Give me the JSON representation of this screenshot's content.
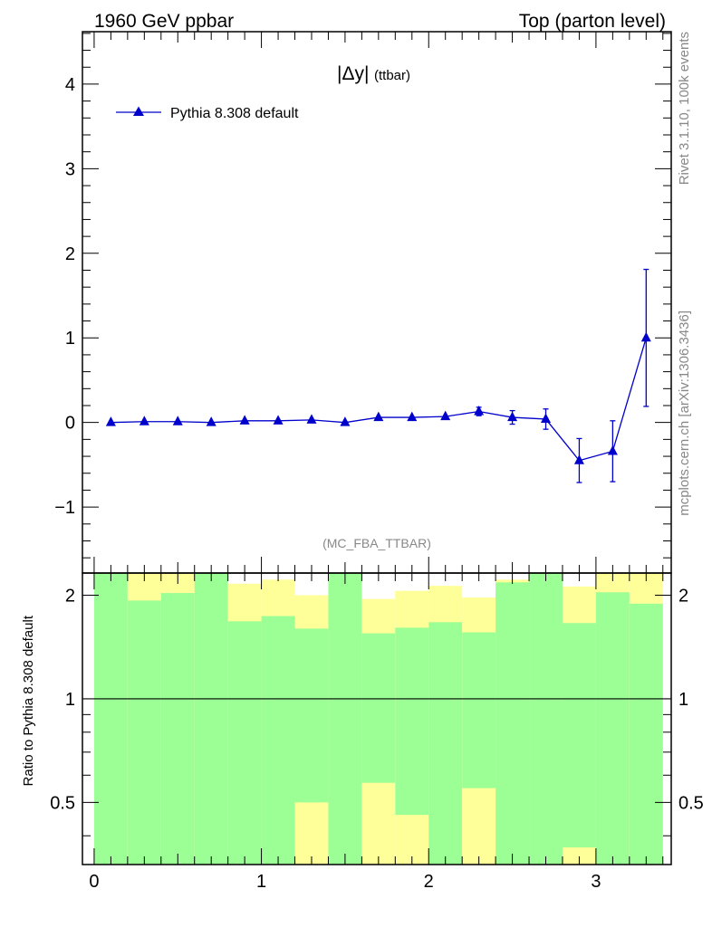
{
  "header": {
    "left": "1960 GeV ppbar",
    "right": "Top (parton level)"
  },
  "side": {
    "rivet": "Rivet 3.1.10,  100k events",
    "mcplots": "mcplots.cern.ch [arXiv:1306.3436]"
  },
  "colors": {
    "series": "#0000cc",
    "band_inner": "#9cff96",
    "band_outer": "#ffff99",
    "axis": "#000000",
    "grey_text": "#888888"
  },
  "chart_data": [
    {
      "type": "line",
      "panel": "main",
      "title": "|Δy|",
      "title_sub": "(ttbar)",
      "analysis_label": "(MC_FBA_TTBAR)",
      "xlim": [
        -0.07,
        3.45
      ],
      "ylim": [
        -1.78,
        4.62
      ],
      "yticks": [
        -1,
        0,
        1,
        2,
        3,
        4
      ],
      "yticklabels": [
        "−1",
        "0",
        "1",
        "2",
        "3",
        "4"
      ],
      "legend": {
        "placement": "top-left"
      },
      "series": [
        {
          "name": "Pythia 8.308 default",
          "marker": "triangle-up",
          "x": [
            0.1,
            0.3,
            0.5,
            0.7,
            0.9,
            1.1,
            1.3,
            1.5,
            1.7,
            1.9,
            2.1,
            2.3,
            2.5,
            2.7,
            2.9,
            3.1,
            3.3
          ],
          "y": [
            0.0,
            0.01,
            0.01,
            0.0,
            0.02,
            0.02,
            0.03,
            0.0,
            0.06,
            0.06,
            0.07,
            0.13,
            0.06,
            0.04,
            -0.45,
            -0.34,
            1.0
          ],
          "yerr": [
            0.02,
            0.02,
            0.02,
            0.02,
            0.02,
            0.02,
            0.02,
            0.02,
            0.02,
            0.03,
            0.03,
            0.05,
            0.08,
            0.12,
            0.26,
            0.36,
            0.81
          ]
        }
      ]
    },
    {
      "type": "area",
      "panel": "ratio",
      "ylabel": "Ratio to Pythia 8.308 default",
      "xlim": [
        -0.07,
        3.45
      ],
      "ylim": [
        0.33,
        2.32
      ],
      "xticks": [
        0,
        1,
        2,
        3
      ],
      "xticklabels": [
        "0",
        "1",
        "2",
        "3"
      ],
      "yticks": [
        0.5,
        1,
        2
      ],
      "yticklabels": [
        "0.5",
        "1",
        "2"
      ],
      "reference_line": 1,
      "bins": {
        "edges": [
          0.0,
          0.2,
          0.4,
          0.6,
          0.8,
          1.0,
          1.2,
          1.4,
          1.6,
          1.8,
          2.0,
          2.2,
          2.4,
          2.6,
          2.8,
          3.0,
          3.2,
          3.4
        ],
        "inner_low": [
          0.0,
          0.0,
          0.0,
          0.0,
          0.0,
          0.0,
          0.5,
          0.0,
          0.57,
          0.46,
          0.0,
          0.55,
          0.0,
          0.0,
          0.37,
          0.0,
          0.0
        ],
        "inner_high": [
          2.5,
          1.93,
          2.03,
          2.5,
          1.68,
          1.74,
          1.6,
          2.5,
          1.55,
          1.61,
          1.67,
          1.56,
          2.18,
          2.5,
          1.66,
          2.04,
          1.89
        ],
        "outer_low": [
          0.0,
          0.0,
          0.0,
          0.0,
          0.35,
          0.0,
          0.0,
          0.0,
          0.0,
          0.0,
          0.0,
          0.0,
          0.0,
          0.0,
          0.0,
          0.0,
          0.0
        ],
        "outer_high": [
          2.5,
          2.5,
          2.5,
          2.5,
          2.16,
          2.22,
          2.0,
          2.5,
          1.95,
          2.06,
          2.13,
          1.97,
          2.22,
          2.5,
          2.12,
          2.5,
          2.5
        ]
      }
    }
  ]
}
